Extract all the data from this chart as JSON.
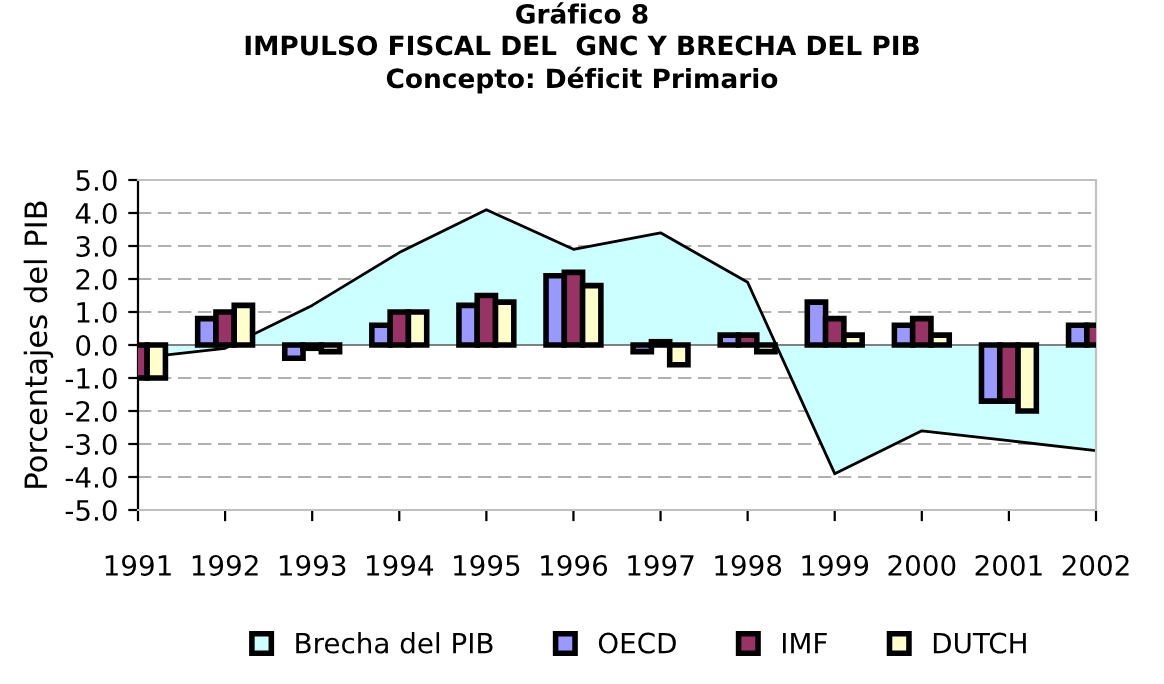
{
  "chart_data": {
    "type": "bar",
    "title": "Gráfico 8\nIMPULSO FISCAL DEL  GNC Y BRECHA DEL PIB\nConcepto: Déficit Primario",
    "ylabel": "Porcentajes del PIB",
    "categories": [
      "1991",
      "1992",
      "1993",
      "1994",
      "1995",
      "1996",
      "1997",
      "1998",
      "1999",
      "2000",
      "2001",
      "2002"
    ],
    "series": [
      {
        "name": "Brecha del PIB",
        "type": "area",
        "color": "#ccffff",
        "values": [
          -0.4,
          -0.1,
          1.2,
          2.8,
          4.1,
          2.9,
          3.4,
          1.9,
          -3.9,
          -2.6,
          -2.9,
          -3.2
        ]
      },
      {
        "name": "OECD",
        "color": "#9999ff",
        "values": [
          null,
          0.8,
          -0.4,
          0.6,
          1.2,
          2.1,
          -0.2,
          0.3,
          1.3,
          0.6,
          -1.7,
          0.6
        ]
      },
      {
        "name": "IMF",
        "color": "#993366",
        "values": [
          -1.0,
          1.0,
          -0.1,
          1.0,
          1.5,
          2.2,
          0.1,
          0.3,
          0.8,
          0.8,
          -1.7,
          0.6
        ]
      },
      {
        "name": "DUTCH",
        "color": "#ffffcc",
        "values": [
          -1.0,
          1.2,
          -0.2,
          1.0,
          1.3,
          1.8,
          -0.6,
          -0.2,
          0.3,
          0.3,
          -2.0,
          null
        ]
      }
    ],
    "ylim": [
      -5.0,
      5.0
    ],
    "yticks": [
      {
        "value": -5,
        "label": "-5.0"
      },
      {
        "value": -4,
        "label": "-4.0"
      },
      {
        "value": -3,
        "label": "-3.0"
      },
      {
        "value": -2,
        "label": "-2.0"
      },
      {
        "value": -1,
        "label": "-1.0"
      },
      {
        "value": 0,
        "label": "0.0"
      },
      {
        "value": 1,
        "label": "1.0"
      },
      {
        "value": 2,
        "label": "2.0"
      },
      {
        "value": 3,
        "label": "3.0"
      },
      {
        "value": 4,
        "label": "4.0"
      },
      {
        "value": 5,
        "label": "5.0"
      }
    ],
    "grid": "y",
    "legend": "bottom"
  }
}
